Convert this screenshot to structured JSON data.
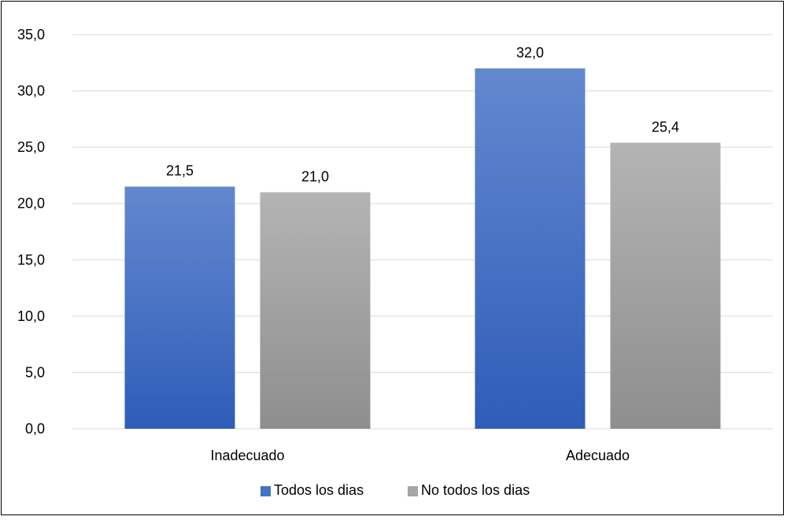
{
  "chart_data": {
    "type": "bar",
    "title": "",
    "xlabel": "",
    "ylabel": "",
    "categories": [
      "Inadecuado",
      "Adecuado"
    ],
    "series": [
      {
        "name": "Todos los dias",
        "values": [
          21.5,
          32.0
        ],
        "labels": [
          "21,5",
          "32,0"
        ],
        "color": "#4472C4"
      },
      {
        "name": "No todos los dias",
        "values": [
          21.0,
          25.4
        ],
        "labels": [
          "21,0",
          "25,4"
        ],
        "color": "#A5A5A5"
      }
    ],
    "ylim": [
      0,
      35
    ],
    "yticks": [
      0,
      5,
      10,
      15,
      20,
      25,
      30,
      35
    ],
    "ytick_labels": [
      "0,0",
      "5,0",
      "10,0",
      "15,0",
      "20,0",
      "25,0",
      "30,0",
      "35,0"
    ],
    "grid": true,
    "legend_position": "bottom"
  }
}
